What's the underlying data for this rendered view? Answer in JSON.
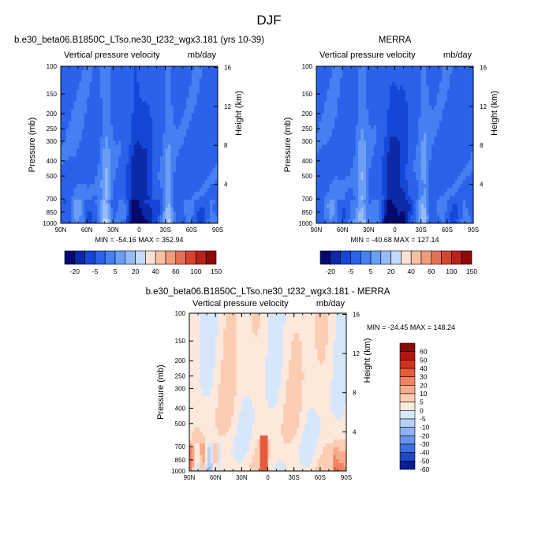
{
  "page_title": "DJF",
  "chart_data": [
    {
      "type": "heatmap",
      "title": "b.e30_beta06.B1850C_LTso.ne30_t232_wgx3.181 (yrs 10-39)",
      "subtitle_left": "Vertical pressure velocity",
      "subtitle_right": "mb/day",
      "ylabel": "Pressure (mb)",
      "ylabel_right": "Height (km)",
      "x_ticks": [
        "90N",
        "60N",
        "30N",
        "0",
        "30S",
        "60S",
        "90S"
      ],
      "y_ticks": [
        "100",
        "150",
        "200",
        "250",
        "300",
        "400",
        "500",
        "700",
        "850",
        "1000"
      ],
      "y_ticks_right": [
        "16",
        "12",
        "8",
        "4"
      ],
      "stats": "MIN = -54.16   MAX = 352.94",
      "colorbar_labels": [
        "-20",
        "-5",
        "5",
        "20",
        "40",
        "60",
        "100",
        "150"
      ]
    },
    {
      "type": "heatmap",
      "title": "MERRA",
      "subtitle_left": "Vertical pressure velocity",
      "subtitle_right": "mb/day",
      "ylabel": "Pressure (mb)",
      "ylabel_right": "Height (km)",
      "x_ticks": [
        "90N",
        "60N",
        "30N",
        "0",
        "30S",
        "60S",
        "90S"
      ],
      "y_ticks": [
        "100",
        "150",
        "200",
        "250",
        "300",
        "400",
        "500",
        "700",
        "850",
        "1000"
      ],
      "y_ticks_right": [
        "16",
        "12",
        "8",
        "4"
      ],
      "stats": "MIN = -40.68   MAX = 127.14",
      "colorbar_labels": [
        "-20",
        "-5",
        "5",
        "20",
        "40",
        "60",
        "100",
        "150"
      ]
    },
    {
      "type": "heatmap",
      "title": "b.e30_beta06.B1850C_LTso.ne30_t232_wgx3.181 - MERRA",
      "subtitle_left": "Vertical pressure velocity",
      "subtitle_right": "mb/day",
      "ylabel": "Pressure (mb)",
      "ylabel_right": "Height (km)",
      "x_ticks": [
        "90N",
        "60N",
        "30N",
        "0",
        "30S",
        "60S",
        "90S"
      ],
      "y_ticks": [
        "100",
        "150",
        "200",
        "250",
        "300",
        "400",
        "500",
        "700",
        "850",
        "1000"
      ],
      "y_ticks_right": [
        "16",
        "12",
        "8",
        "4"
      ],
      "stats": "MIN = -24.45   MAX = 148.24",
      "colorbar_labels": [
        "60",
        "50",
        "40",
        "30",
        "20",
        "10",
        "5",
        "0",
        "-5",
        "-10",
        "-20",
        "-30",
        "-40",
        "-50",
        "-60"
      ]
    }
  ],
  "colors": {
    "abs_palette": [
      "#08096e",
      "#0b2aa8",
      "#1446d8",
      "#2a62ea",
      "#4480f2",
      "#6b9ef5",
      "#96bcf8",
      "#c4dafb",
      "#fbe1d1",
      "#f8c0a3",
      "#f09b7d",
      "#e57058",
      "#d4452f",
      "#b8221a",
      "#8c0a0a"
    ],
    "diff_palette": [
      "#8b0a0a",
      "#b5150e",
      "#d23221",
      "#e55b3d",
      "#f08462",
      "#f6aa89",
      "#fbcdb3",
      "#fde8dc",
      "#d7e7fb",
      "#b6d0f8",
      "#8eb2f2",
      "#6692ea",
      "#3d70df",
      "#1c4ac4",
      "#0a1e92"
    ]
  }
}
